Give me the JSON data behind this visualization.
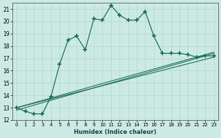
{
  "xlabel": "Humidex (Indice chaleur)",
  "bg_color": "#cceae4",
  "line_color": "#1a6b5a",
  "grid_color": "#b8d8d0",
  "xlim": [
    -0.5,
    23.5
  ],
  "ylim": [
    12,
    21.5
  ],
  "yticks": [
    12,
    13,
    14,
    15,
    16,
    17,
    18,
    19,
    20,
    21
  ],
  "xticks": [
    0,
    1,
    2,
    3,
    4,
    5,
    6,
    7,
    8,
    9,
    10,
    11,
    12,
    13,
    14,
    15,
    16,
    17,
    18,
    19,
    20,
    21,
    22,
    23
  ],
  "main_x": [
    0,
    1,
    2,
    3,
    4,
    5,
    6,
    7,
    8,
    9,
    10,
    11,
    12,
    13,
    14,
    15,
    16,
    17,
    18,
    19,
    20,
    21,
    22,
    23
  ],
  "main_y": [
    13.0,
    12.7,
    12.5,
    12.5,
    13.9,
    16.5,
    18.5,
    18.8,
    17.7,
    20.2,
    20.1,
    21.3,
    20.5,
    20.1,
    20.1,
    20.8,
    18.8,
    17.4,
    17.4,
    17.4,
    17.3,
    17.1,
    17.2,
    17.2
  ],
  "trend1_x": [
    0,
    23
  ],
  "trend1_y": [
    13.0,
    17.1
  ],
  "trend2_x": [
    0,
    23
  ],
  "trend2_y": [
    12.8,
    17.4
  ],
  "trend3_x": [
    0,
    23
  ],
  "trend3_y": [
    13.0,
    17.5
  ]
}
